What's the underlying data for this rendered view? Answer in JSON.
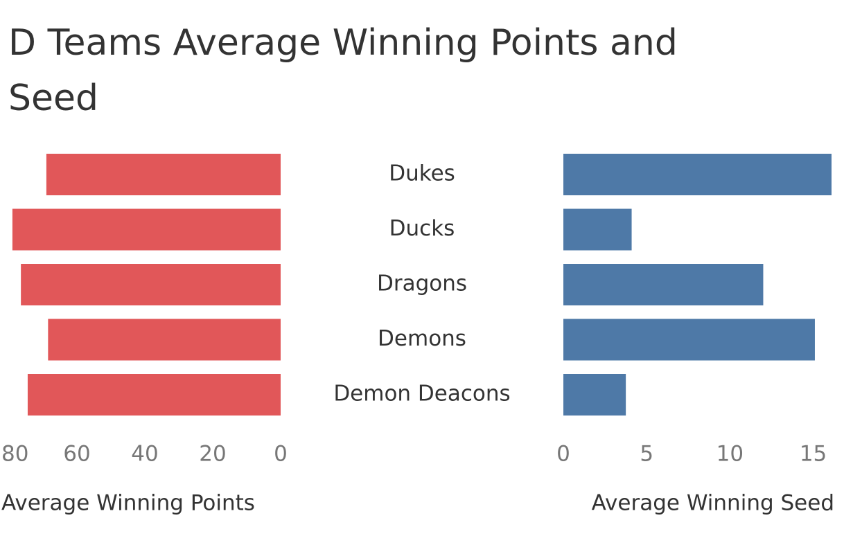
{
  "chart_data": {
    "type": "bar",
    "title": "D Teams Average Winning Points and Seed",
    "categories": [
      "Dukes",
      "Ducks",
      "Dragons",
      "Demons",
      "Demon Deacons"
    ],
    "series": [
      {
        "name": "Average Winning Points",
        "color": "#e15759",
        "values": [
          69,
          79,
          76.5,
          68.5,
          74.5
        ],
        "xlim": [
          0,
          80
        ],
        "xticks": [
          0,
          20,
          40,
          60,
          80
        ],
        "direction": "left"
      },
      {
        "name": "Average Winning Seed",
        "color": "#4e79a7",
        "values": [
          16.1,
          4.1,
          12,
          15.1,
          3.75
        ],
        "xlim": [
          0,
          16.1
        ],
        "xticks": [
          0,
          5,
          10,
          15
        ],
        "direction": "right"
      }
    ]
  }
}
